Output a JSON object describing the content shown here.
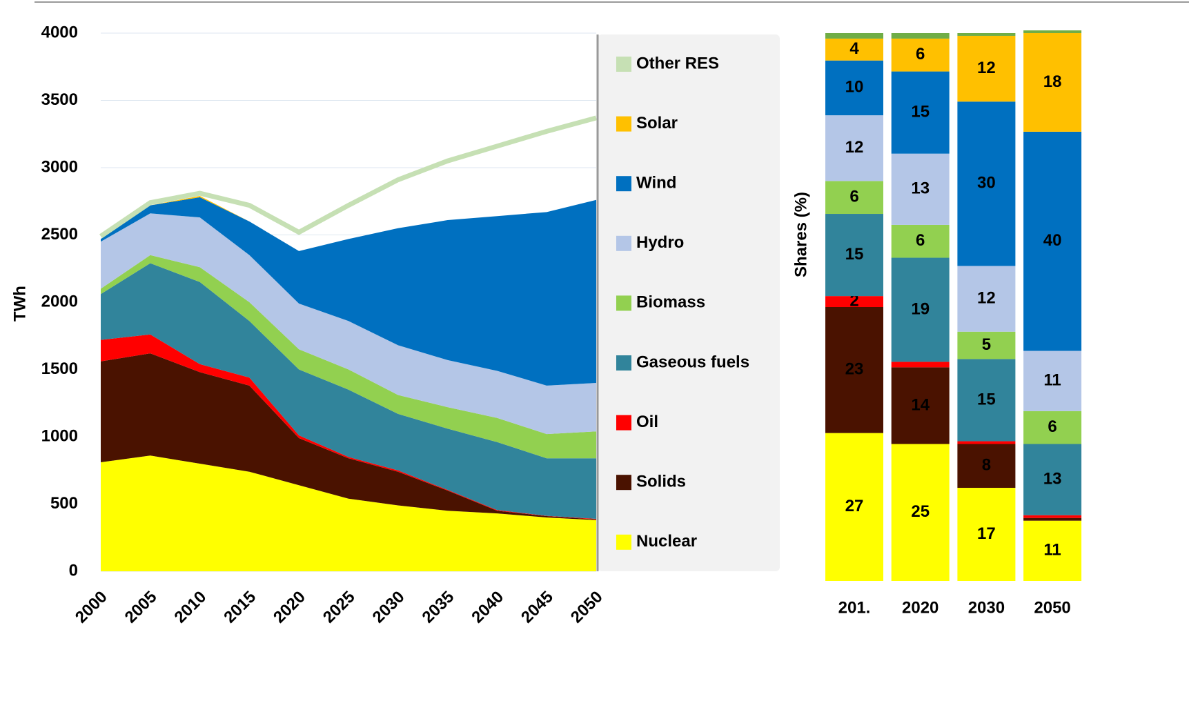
{
  "chart_data": [
    {
      "type": "stacked_area",
      "y_label": "TWh",
      "x": [
        2000,
        2005,
        2010,
        2015,
        2020,
        2025,
        2030,
        2035,
        2040,
        2045,
        2050
      ],
      "xlim": [
        2000,
        2050
      ],
      "xticks": [
        2000,
        2005,
        2010,
        2015,
        2020,
        2025,
        2030,
        2035,
        2040,
        2045,
        2050
      ],
      "ylim": [
        0,
        4000
      ],
      "yticks": [
        0,
        500,
        1000,
        1500,
        2000,
        2500,
        3000,
        3500,
        4000
      ],
      "grid": true,
      "series": [
        {
          "name": "Nuclear",
          "color": "#ffff00",
          "values": [
            810,
            860,
            800,
            740,
            640,
            540,
            490,
            450,
            430,
            400,
            380
          ]
        },
        {
          "name": "Solids",
          "color": "#4a1200",
          "values": [
            750,
            760,
            680,
            640,
            350,
            300,
            250,
            150,
            20,
            10,
            5
          ]
        },
        {
          "name": "Oil",
          "color": "#ff0000",
          "values": [
            160,
            140,
            60,
            60,
            20,
            10,
            10,
            5,
            5,
            2,
            5
          ]
        },
        {
          "name": "Gaseous fuels",
          "color": "#31849b",
          "values": [
            340,
            530,
            610,
            420,
            490,
            500,
            420,
            455,
            505,
            428,
            450
          ]
        },
        {
          "name": "Biomass",
          "color": "#92d050",
          "values": [
            40,
            60,
            110,
            140,
            150,
            150,
            140,
            160,
            180,
            180,
            200
          ]
        },
        {
          "name": "Hydro",
          "color": "#b4c6e7",
          "values": [
            350,
            310,
            370,
            350,
            340,
            360,
            370,
            350,
            350,
            360,
            360
          ]
        },
        {
          "name": "Wind",
          "color": "#0070c0",
          "values": [
            20,
            60,
            150,
            250,
            390,
            610,
            870,
            1040,
            1150,
            1290,
            1360
          ]
        },
        {
          "name": "Solar",
          "color": "#ffc000",
          "values": [
            0,
            0,
            10,
            0,
            0,
            0,
            0,
            0,
            0,
            0,
            0
          ]
        },
        {
          "name": "Other RES",
          "color": "#c6e0b4",
          "style": "line",
          "values": [
            20,
            20,
            20,
            120,
            140,
            250,
            360,
            440,
            520,
            600,
            610
          ]
        }
      ]
    },
    {
      "type": "stacked_bar",
      "y_label": "Shares (%)",
      "categories": [
        "201.",
        "2020",
        "2030",
        "2050"
      ],
      "ylim": [
        0,
        100
      ],
      "series": [
        {
          "color": "#ffff00",
          "values": [
            27,
            25,
            17,
            11
          ]
        },
        {
          "color": "#4a1200",
          "values": [
            23,
            14,
            8,
            0.5
          ]
        },
        {
          "color": "#ff0000",
          "values": [
            2,
            1,
            0.5,
            0.5
          ]
        },
        {
          "color": "#31849b",
          "values": [
            15,
            19,
            15,
            13
          ]
        },
        {
          "color": "#92d050",
          "values": [
            6,
            6,
            5,
            6
          ]
        },
        {
          "color": "#b4c6e7",
          "values": [
            12,
            13,
            12,
            11
          ]
        },
        {
          "color": "#0070c0",
          "values": [
            10,
            15,
            30,
            40
          ]
        },
        {
          "color": "#ffc000",
          "values": [
            4,
            6,
            12,
            18
          ]
        },
        {
          "color": "#70ad47",
          "values": [
            1,
            1,
            0.5,
            0.5
          ]
        }
      ]
    }
  ]
}
